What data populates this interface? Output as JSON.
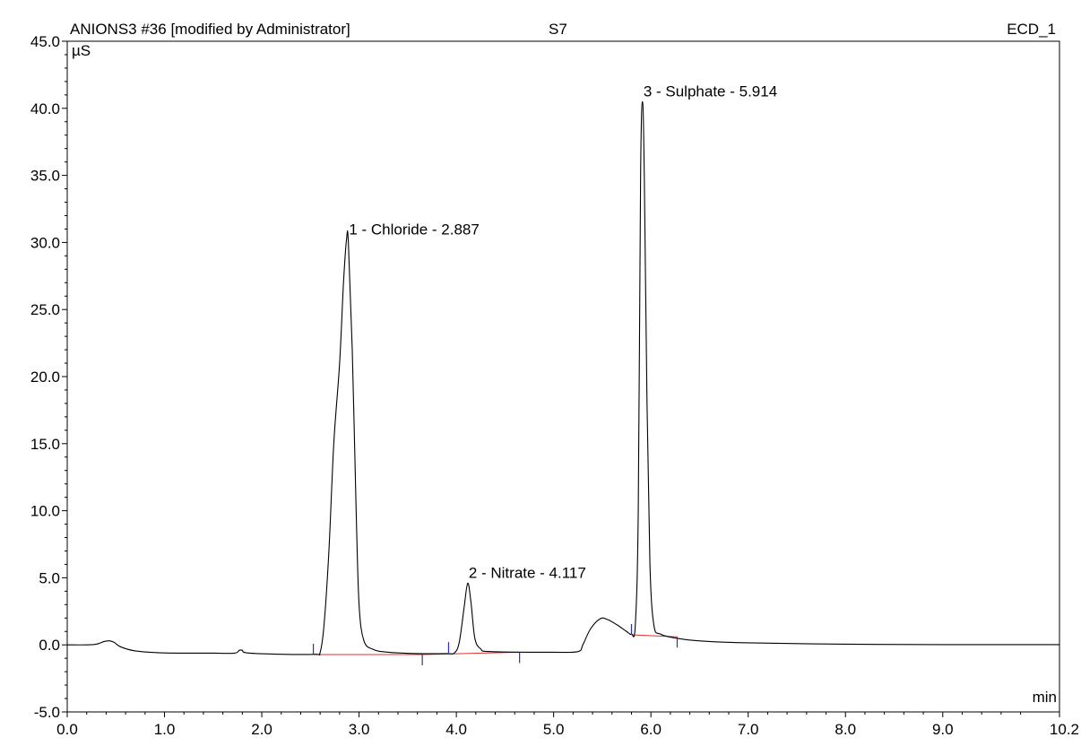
{
  "header": {
    "left": "ANIONS3 #36 [modified by Administrator]",
    "center": "S7",
    "right": "ECD_1"
  },
  "chart_data": {
    "type": "line",
    "xlabel": "min",
    "ylabel": "µS",
    "xlim": [
      0.0,
      10.2
    ],
    "ylim": [
      -5.0,
      45.0
    ],
    "x_ticks": [
      "0.0",
      "1.0",
      "2.0",
      "3.0",
      "4.0",
      "5.0",
      "6.0",
      "7.0",
      "8.0",
      "9.0",
      "10.2"
    ],
    "x_tick_values": [
      0.0,
      1.0,
      2.0,
      3.0,
      4.0,
      5.0,
      6.0,
      7.0,
      8.0,
      9.0,
      10.2
    ],
    "y_ticks": [
      "-5.0",
      "0.0",
      "5.0",
      "10.0",
      "15.0",
      "20.0",
      "25.0",
      "30.0",
      "35.0",
      "40.0",
      "45.0"
    ],
    "y_tick_values": [
      -5.0,
      0.0,
      5.0,
      10.0,
      15.0,
      20.0,
      25.0,
      30.0,
      35.0,
      40.0,
      45.0
    ],
    "series": [
      {
        "color": "#000000",
        "points": [
          [
            0.0,
            0.0
          ],
          [
            0.2,
            0.0
          ],
          [
            0.3,
            0.05
          ],
          [
            0.38,
            0.25
          ],
          [
            0.43,
            0.3
          ],
          [
            0.48,
            0.2
          ],
          [
            0.55,
            -0.15
          ],
          [
            0.7,
            -0.45
          ],
          [
            1.0,
            -0.6
          ],
          [
            1.5,
            -0.62
          ],
          [
            1.72,
            -0.62
          ],
          [
            1.77,
            -0.4
          ],
          [
            1.8,
            -0.4
          ],
          [
            1.85,
            -0.6
          ],
          [
            2.2,
            -0.7
          ],
          [
            2.55,
            -0.7
          ],
          [
            2.6,
            -0.55
          ],
          [
            2.64,
            1.5
          ],
          [
            2.69,
            7.0
          ],
          [
            2.74,
            15.0
          ],
          [
            2.8,
            21.0
          ],
          [
            2.84,
            27.0
          ],
          [
            2.872,
            30.3
          ],
          [
            2.89,
            30.0
          ],
          [
            2.93,
            22.0
          ],
          [
            2.97,
            10.0
          ],
          [
            3.0,
            3.0
          ],
          [
            3.05,
            0.3
          ],
          [
            3.15,
            -0.35
          ],
          [
            3.3,
            -0.55
          ],
          [
            3.6,
            -0.65
          ],
          [
            3.9,
            -0.65
          ],
          [
            3.98,
            -0.6
          ],
          [
            4.03,
            0.2
          ],
          [
            4.08,
            2.8
          ],
          [
            4.117,
            4.6
          ],
          [
            4.15,
            3.2
          ],
          [
            4.19,
            0.5
          ],
          [
            4.25,
            -0.3
          ],
          [
            4.35,
            -0.5
          ],
          [
            5.0,
            -0.55
          ],
          [
            5.25,
            -0.5
          ],
          [
            5.3,
            0.0
          ],
          [
            5.38,
            1.2
          ],
          [
            5.48,
            1.95
          ],
          [
            5.55,
            1.9
          ],
          [
            5.65,
            1.5
          ],
          [
            5.75,
            1.0
          ],
          [
            5.8,
            0.8
          ],
          [
            5.84,
            1.5
          ],
          [
            5.87,
            10.0
          ],
          [
            5.894,
            35.0
          ],
          [
            5.914,
            40.5
          ],
          [
            5.932,
            35.0
          ],
          [
            5.96,
            18.0
          ],
          [
            5.99,
            6.0
          ],
          [
            6.03,
            1.5
          ],
          [
            6.1,
            0.8
          ],
          [
            6.3,
            0.45
          ],
          [
            6.6,
            0.25
          ],
          [
            7.0,
            0.15
          ],
          [
            8.0,
            0.05
          ],
          [
            9.0,
            0.02
          ],
          [
            10.2,
            0.02
          ]
        ]
      }
    ],
    "baselines": [
      {
        "color": "#e03030",
        "from": [
          2.53,
          -0.72
        ],
        "to": [
          3.65,
          -0.72
        ]
      },
      {
        "color": "#e03030",
        "from": [
          3.65,
          -0.72
        ],
        "to": [
          4.65,
          -0.55
        ]
      },
      {
        "color": "#e03030",
        "from": [
          5.8,
          0.75
        ],
        "to": [
          6.27,
          0.6
        ]
      }
    ],
    "markers": {
      "color": "#2c2cc8",
      "up": [
        2.53,
        3.92,
        5.8
      ],
      "down": [
        3.65,
        4.65,
        6.27
      ],
      "up_levels": [
        -0.72,
        -0.6,
        0.75
      ],
      "down_levels": [
        -0.72,
        -0.55,
        0.6
      ]
    },
    "annotations": [
      {
        "text": "1 - Chloride - 2.887",
        "x": 2.887,
        "y": 30.2
      },
      {
        "text": "2 - Nitrate - 4.117",
        "x": 4.117,
        "y": 4.6
      },
      {
        "text": "3 - Sulphate - 5.914",
        "x": 5.914,
        "y": 40.5
      }
    ],
    "grid": false
  }
}
